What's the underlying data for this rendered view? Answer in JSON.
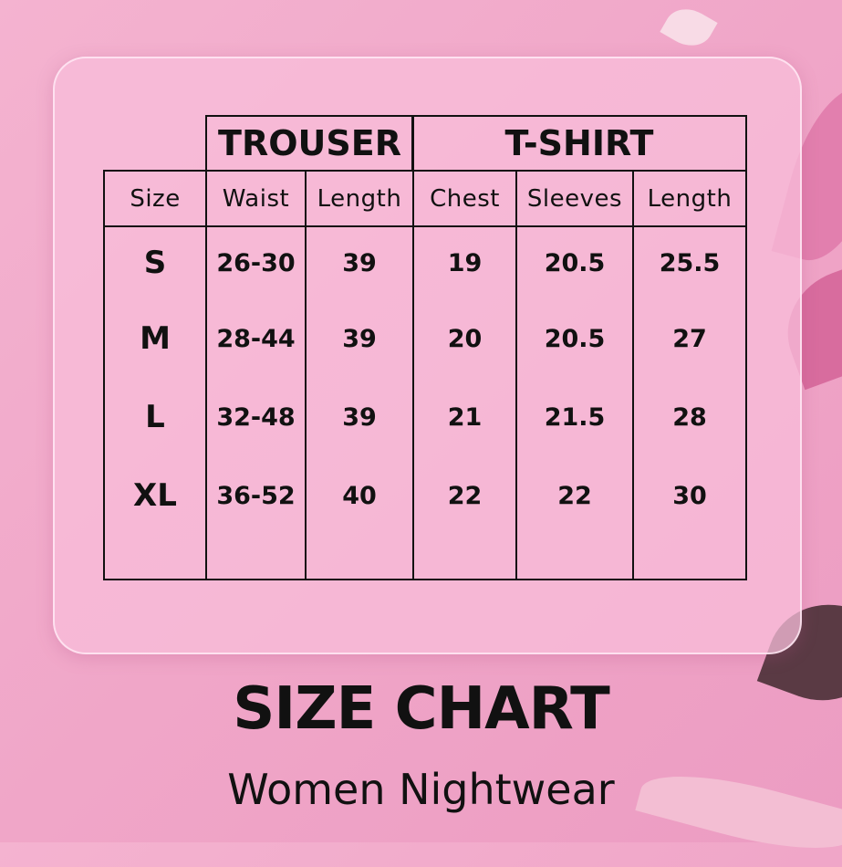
{
  "groups": {
    "trouser": "TROUSER",
    "tshirt": "T-SHIRT"
  },
  "headers": [
    "Size",
    "Waist",
    "Length",
    "Chest",
    "Sleeves",
    "Length"
  ],
  "rows": [
    [
      "S",
      "26-30",
      "39",
      "19",
      "20.5",
      "25.5"
    ],
    [
      "M",
      "28-44",
      "39",
      "20",
      "20.5",
      "27"
    ],
    [
      "L",
      "32-48",
      "39",
      "21",
      "21.5",
      "28"
    ],
    [
      "XL",
      "36-52",
      "40",
      "22",
      "22",
      "30"
    ]
  ],
  "title": "SIZE CHART",
  "subtitle": "Women Nightwear",
  "colors": {
    "background": "#f0a6c8",
    "text": "#111111"
  }
}
